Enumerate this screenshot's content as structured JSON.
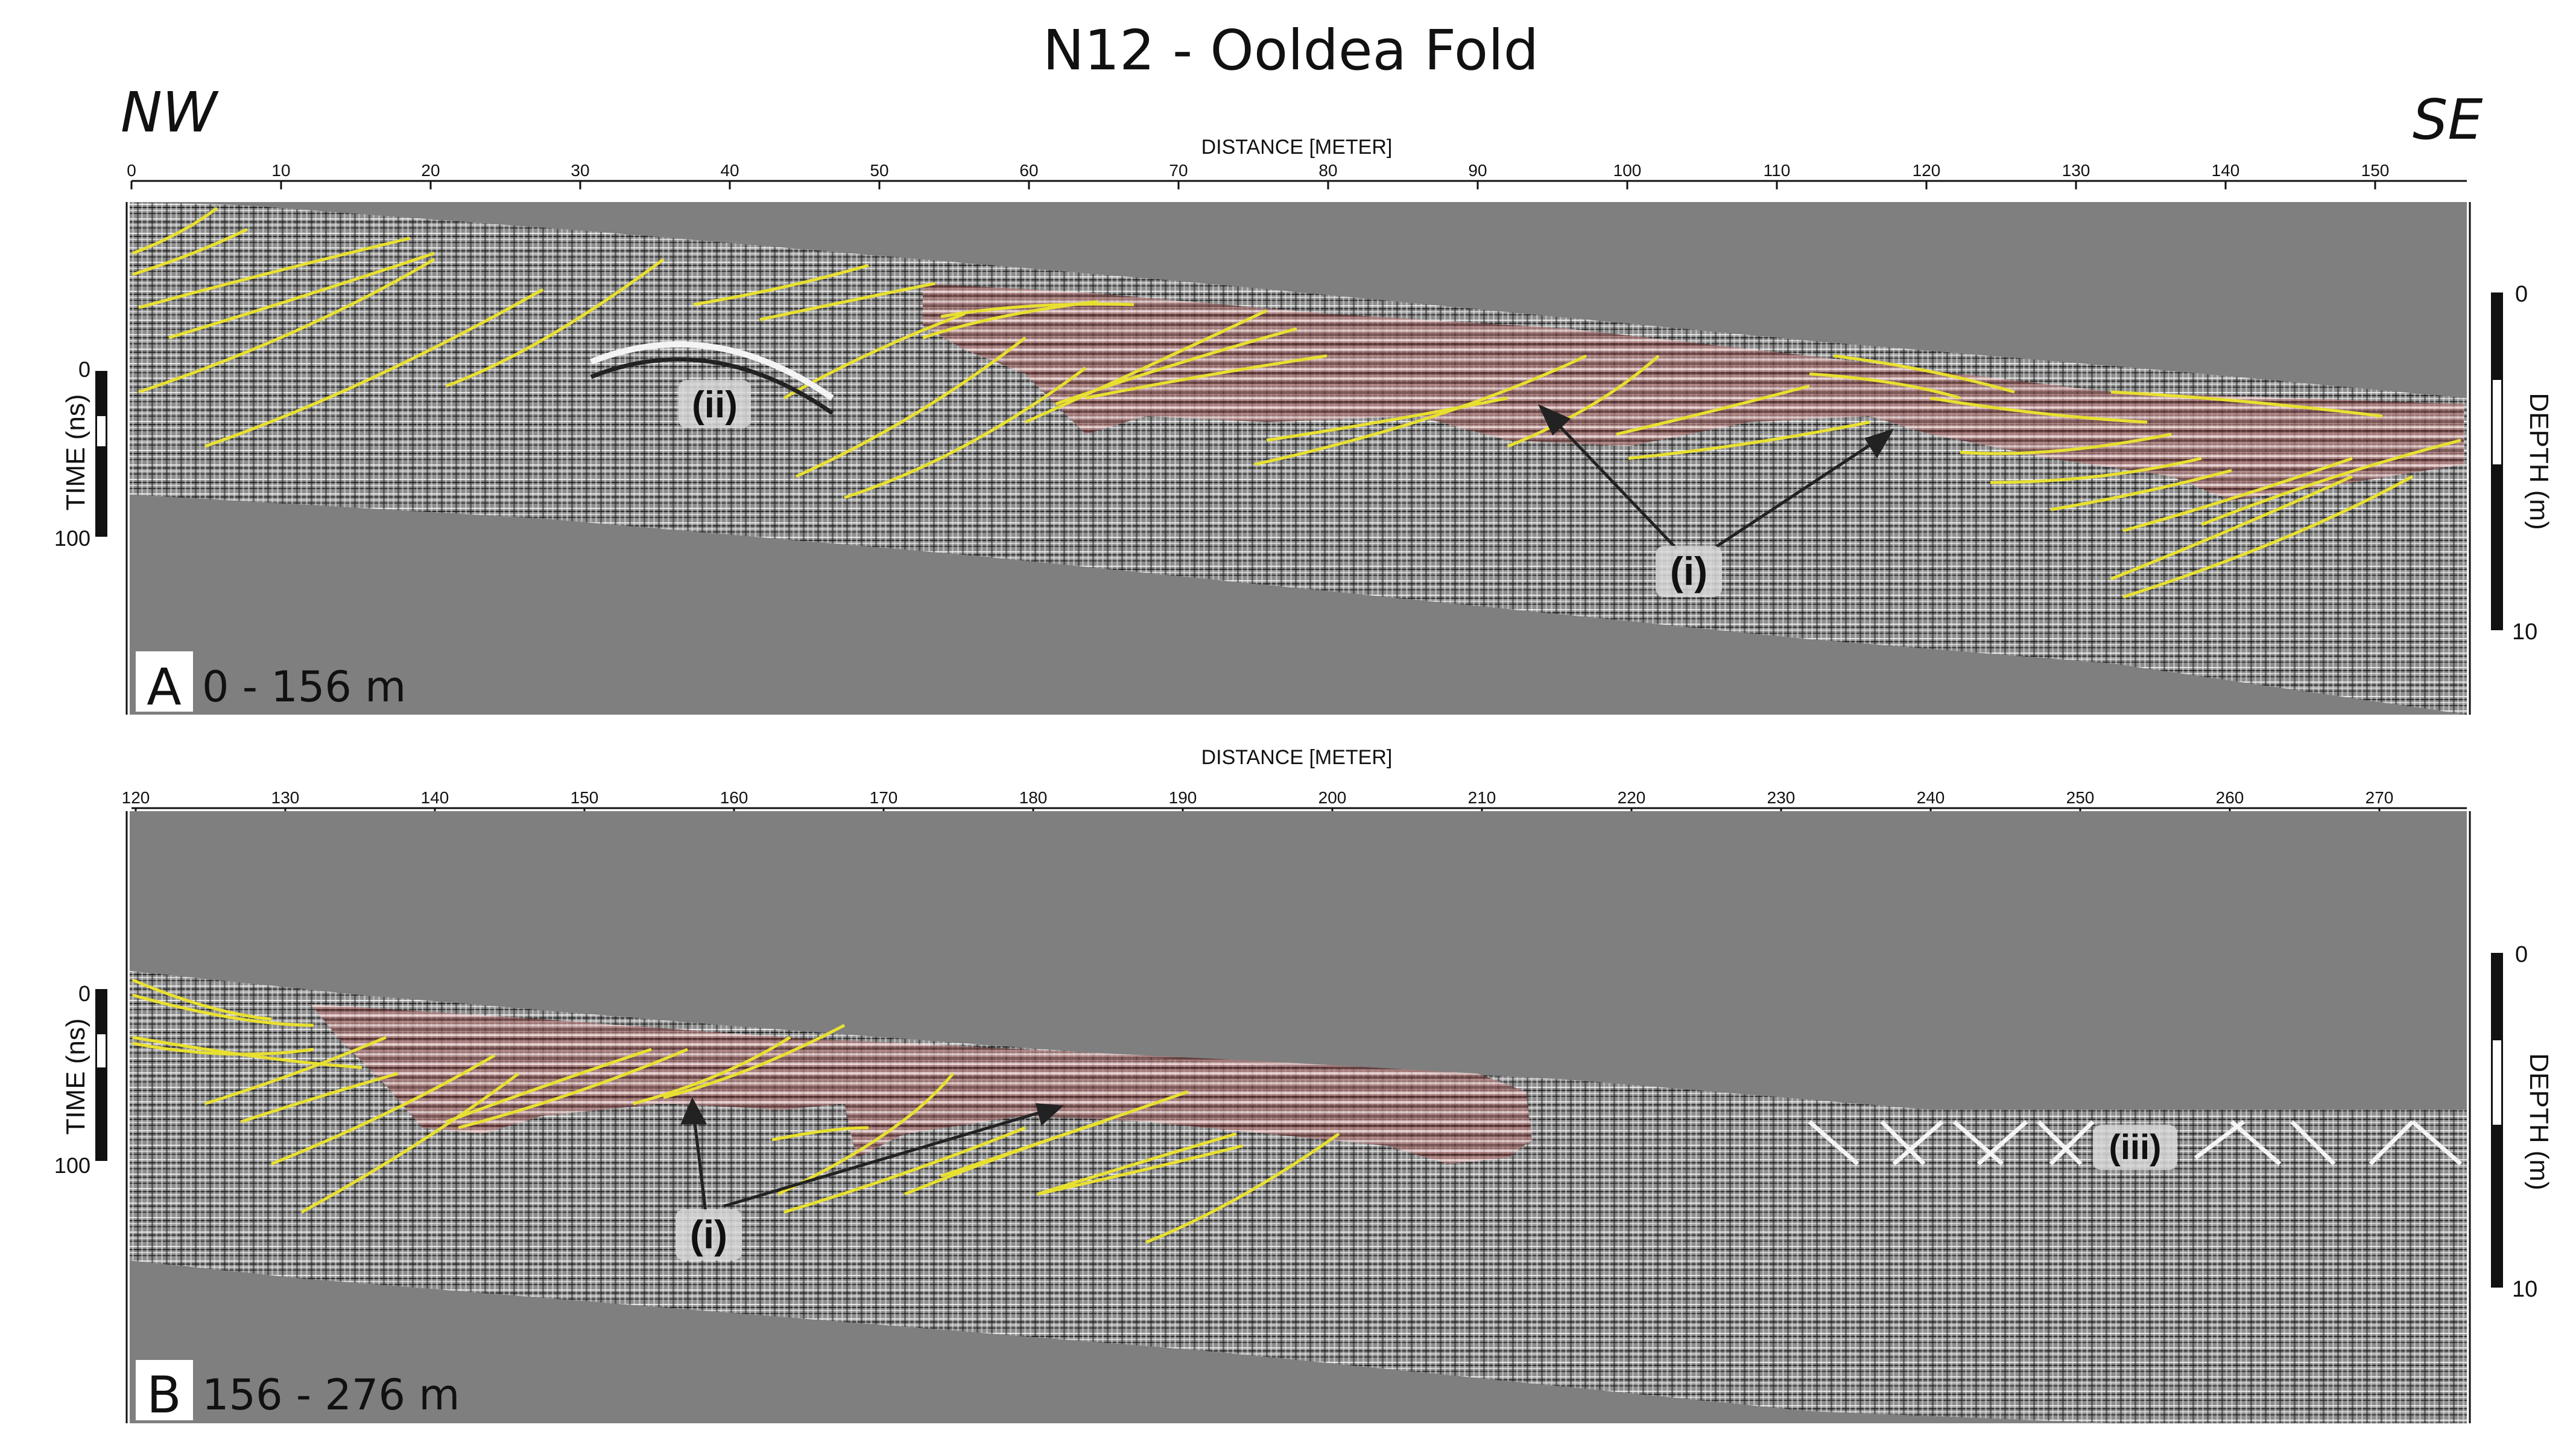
{
  "figure": {
    "title": "N12 - Ooldea Fold",
    "left_direction": "NW",
    "right_direction": "SE"
  },
  "panels": [
    {
      "id": "A",
      "letter": "A",
      "range_label": "0 - 156 m",
      "distance_axis_label": "DISTANCE [METER]",
      "distance_ticks": [
        "0",
        "10",
        "20",
        "30",
        "40",
        "50",
        "60",
        "70",
        "80",
        "90",
        "100",
        "110",
        "120",
        "130",
        "140",
        "150"
      ],
      "distance_range_m": [
        0,
        156
      ],
      "time_axis_label": "TIME (ns)",
      "time_ticks": [
        "0",
        "100"
      ],
      "depth_axis_label": "DEPTH (m)",
      "depth_ticks": [
        "0",
        "10"
      ],
      "annotations": [
        "(i)",
        "(ii)"
      ]
    },
    {
      "id": "B",
      "letter": "B",
      "range_label": "156 - 276 m",
      "distance_axis_label": "DISTANCE [METER]",
      "distance_ticks": [
        "120",
        "130",
        "140",
        "150",
        "160",
        "170",
        "180",
        "190",
        "200",
        "210",
        "220",
        "230",
        "240",
        "250",
        "260",
        "270"
      ],
      "distance_range_m": [
        120,
        276
      ],
      "time_axis_label": "TIME (ns)",
      "time_ticks": [
        "0",
        "100"
      ],
      "depth_axis_label": "DEPTH (m)",
      "depth_ticks": [
        "0",
        "10"
      ],
      "annotations": [
        "(i)",
        "(iii)"
      ]
    }
  ],
  "colors": {
    "background_gray": "#7f7f7f",
    "reflector_lines": "#e8e030",
    "highlight_zone": "#d07070",
    "axis": "#111111"
  }
}
